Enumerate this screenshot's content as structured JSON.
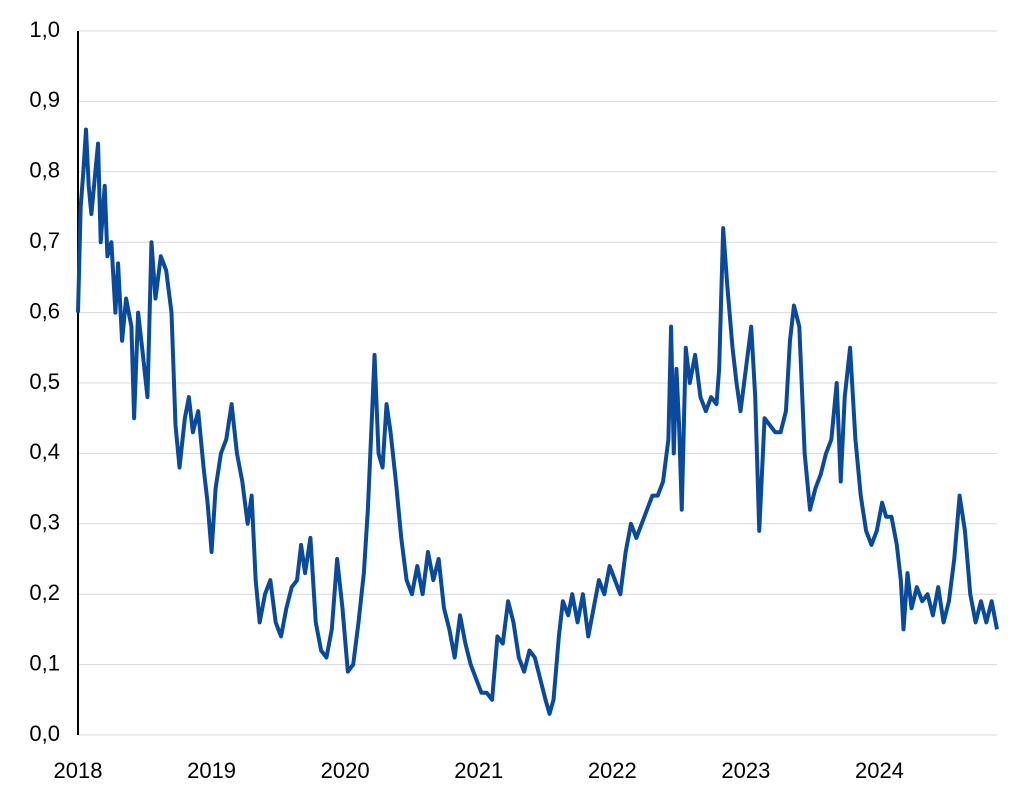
{
  "chart_data": {
    "type": "line",
    "x": [
      2018.0,
      2018.02,
      2018.04,
      2018.06,
      2018.08,
      2018.1,
      2018.13,
      2018.15,
      2018.17,
      2018.2,
      2018.22,
      2018.25,
      2018.28,
      2018.3,
      2018.33,
      2018.36,
      2018.4,
      2018.42,
      2018.45,
      2018.48,
      2018.52,
      2018.55,
      2018.58,
      2018.62,
      2018.66,
      2018.7,
      2018.73,
      2018.76,
      2018.8,
      2018.83,
      2018.86,
      2018.9,
      2018.94,
      2018.97,
      2019.0,
      2019.03,
      2019.07,
      2019.11,
      2019.15,
      2019.19,
      2019.23,
      2019.27,
      2019.3,
      2019.33,
      2019.36,
      2019.4,
      2019.44,
      2019.48,
      2019.52,
      2019.56,
      2019.6,
      2019.64,
      2019.67,
      2019.7,
      2019.74,
      2019.78,
      2019.82,
      2019.86,
      2019.9,
      2019.94,
      2019.98,
      2020.02,
      2020.06,
      2020.1,
      2020.14,
      2020.17,
      2020.2,
      2020.22,
      2020.25,
      2020.28,
      2020.31,
      2020.34,
      2020.38,
      2020.42,
      2020.46,
      2020.5,
      2020.54,
      2020.58,
      2020.62,
      2020.66,
      2020.7,
      2020.74,
      2020.78,
      2020.82,
      2020.86,
      2020.9,
      2020.94,
      2020.98,
      2021.02,
      2021.06,
      2021.1,
      2021.14,
      2021.18,
      2021.22,
      2021.26,
      2021.3,
      2021.34,
      2021.38,
      2021.42,
      2021.46,
      2021.5,
      2021.53,
      2021.56,
      2021.6,
      2021.63,
      2021.67,
      2021.7,
      2021.74,
      2021.78,
      2021.82,
      2021.86,
      2021.9,
      2021.94,
      2021.98,
      2022.02,
      2022.06,
      2022.1,
      2022.14,
      2022.18,
      2022.22,
      2022.26,
      2022.3,
      2022.34,
      2022.38,
      2022.42,
      2022.44,
      2022.46,
      2022.48,
      2022.5,
      2022.52,
      2022.55,
      2022.58,
      2022.62,
      2022.66,
      2022.7,
      2022.74,
      2022.78,
      2022.8,
      2022.83,
      2022.86,
      2022.9,
      2022.93,
      2022.96,
      2023.0,
      2023.04,
      2023.07,
      2023.1,
      2023.14,
      2023.18,
      2023.22,
      2023.26,
      2023.3,
      2023.33,
      2023.36,
      2023.4,
      2023.44,
      2023.48,
      2023.52,
      2023.56,
      2023.6,
      2023.64,
      2023.68,
      2023.71,
      2023.74,
      2023.78,
      2023.82,
      2023.86,
      2023.9,
      2023.94,
      2023.98,
      2024.02,
      2024.05,
      2024.09,
      2024.13,
      2024.16,
      2024.18,
      2024.21,
      2024.24,
      2024.28,
      2024.32,
      2024.36,
      2024.4,
      2024.44,
      2024.48,
      2024.52,
      2024.56,
      2024.6,
      2024.64,
      2024.68,
      2024.72,
      2024.76,
      2024.8,
      2024.84,
      2024.88
    ],
    "series": [
      {
        "color": "#0a4a9c",
        "values": [
          0.6,
          0.75,
          0.8,
          0.86,
          0.78,
          0.74,
          0.8,
          0.84,
          0.7,
          0.78,
          0.68,
          0.7,
          0.6,
          0.67,
          0.56,
          0.62,
          0.58,
          0.45,
          0.6,
          0.55,
          0.48,
          0.7,
          0.62,
          0.68,
          0.66,
          0.6,
          0.44,
          0.38,
          0.45,
          0.48,
          0.43,
          0.46,
          0.38,
          0.33,
          0.26,
          0.35,
          0.4,
          0.42,
          0.47,
          0.4,
          0.36,
          0.3,
          0.34,
          0.22,
          0.16,
          0.2,
          0.22,
          0.16,
          0.14,
          0.18,
          0.21,
          0.22,
          0.27,
          0.23,
          0.28,
          0.16,
          0.12,
          0.11,
          0.15,
          0.25,
          0.18,
          0.09,
          0.1,
          0.16,
          0.23,
          0.32,
          0.45,
          0.54,
          0.4,
          0.38,
          0.47,
          0.43,
          0.36,
          0.28,
          0.22,
          0.2,
          0.24,
          0.2,
          0.26,
          0.22,
          0.25,
          0.18,
          0.15,
          0.11,
          0.17,
          0.13,
          0.1,
          0.08,
          0.06,
          0.06,
          0.05,
          0.14,
          0.13,
          0.19,
          0.16,
          0.11,
          0.09,
          0.12,
          0.11,
          0.08,
          0.05,
          0.03,
          0.05,
          0.14,
          0.19,
          0.17,
          0.2,
          0.16,
          0.2,
          0.14,
          0.18,
          0.22,
          0.2,
          0.24,
          0.22,
          0.2,
          0.26,
          0.3,
          0.28,
          0.3,
          0.32,
          0.34,
          0.34,
          0.36,
          0.42,
          0.58,
          0.4,
          0.52,
          0.44,
          0.32,
          0.55,
          0.5,
          0.54,
          0.48,
          0.46,
          0.48,
          0.47,
          0.52,
          0.72,
          0.64,
          0.55,
          0.5,
          0.46,
          0.52,
          0.58,
          0.48,
          0.29,
          0.45,
          0.44,
          0.43,
          0.43,
          0.46,
          0.56,
          0.61,
          0.58,
          0.4,
          0.32,
          0.35,
          0.37,
          0.4,
          0.42,
          0.5,
          0.36,
          0.48,
          0.55,
          0.42,
          0.34,
          0.29,
          0.27,
          0.29,
          0.33,
          0.31,
          0.31,
          0.27,
          0.22,
          0.15,
          0.23,
          0.18,
          0.21,
          0.19,
          0.2,
          0.17,
          0.21,
          0.16,
          0.19,
          0.25,
          0.34,
          0.29,
          0.2,
          0.16,
          0.19,
          0.16,
          0.19,
          0.15
        ]
      }
    ],
    "xlim": [
      2018,
      2024.88
    ],
    "xticks": [
      2018,
      2019,
      2020,
      2021,
      2022,
      2023,
      2024
    ],
    "ylim": [
      0,
      1
    ],
    "yticks": [
      {
        "value": 0,
        "label": "0,0"
      },
      {
        "value": 0.1,
        "label": "0,1"
      },
      {
        "value": 0.2,
        "label": "0,2"
      },
      {
        "value": 0.3,
        "label": "0,3"
      },
      {
        "value": 0.4,
        "label": "0,4"
      },
      {
        "value": 0.5,
        "label": "0,5"
      },
      {
        "value": 0.6,
        "label": "0,6"
      },
      {
        "value": 0.7,
        "label": "0,7"
      },
      {
        "value": 0.8,
        "label": "0,8"
      },
      {
        "value": 0.9,
        "label": "0,9"
      },
      {
        "value": 1,
        "label": "1,0"
      }
    ],
    "grid": true
  }
}
